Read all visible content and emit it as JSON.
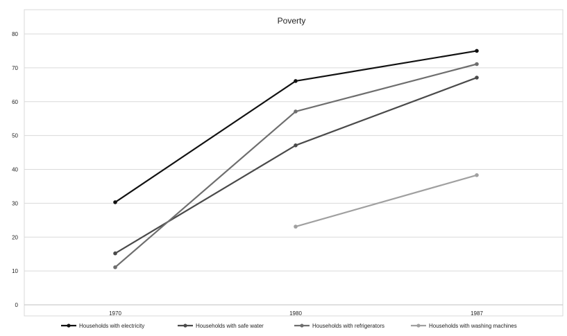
{
  "chart_data": {
    "type": "line",
    "title": "Poverty",
    "categories": [
      "1970",
      "1980",
      "1987"
    ],
    "ylim": [
      0,
      80
    ],
    "yticks": [
      0,
      10,
      20,
      30,
      40,
      50,
      60,
      70,
      80
    ],
    "grid": true,
    "legend_position": "bottom",
    "series": [
      {
        "name": "Households with electricity",
        "values": [
          30.3,
          66.1,
          75.0
        ],
        "color": "#111111",
        "width": 2.2
      },
      {
        "name": "Households with safe water",
        "values": [
          15.2,
          47.1,
          67.1
        ],
        "color": "#4a4a4a",
        "width": 2.2
      },
      {
        "name": "Households with refrigerators",
        "values": [
          11.1,
          57.1,
          71.1
        ],
        "color": "#6e6e6e",
        "width": 2.2
      },
      {
        "name": "Households with washing machines",
        "values": [
          null,
          23.1,
          38.3
        ],
        "color": "#a0a0a0",
        "width": 2.2
      }
    ]
  }
}
